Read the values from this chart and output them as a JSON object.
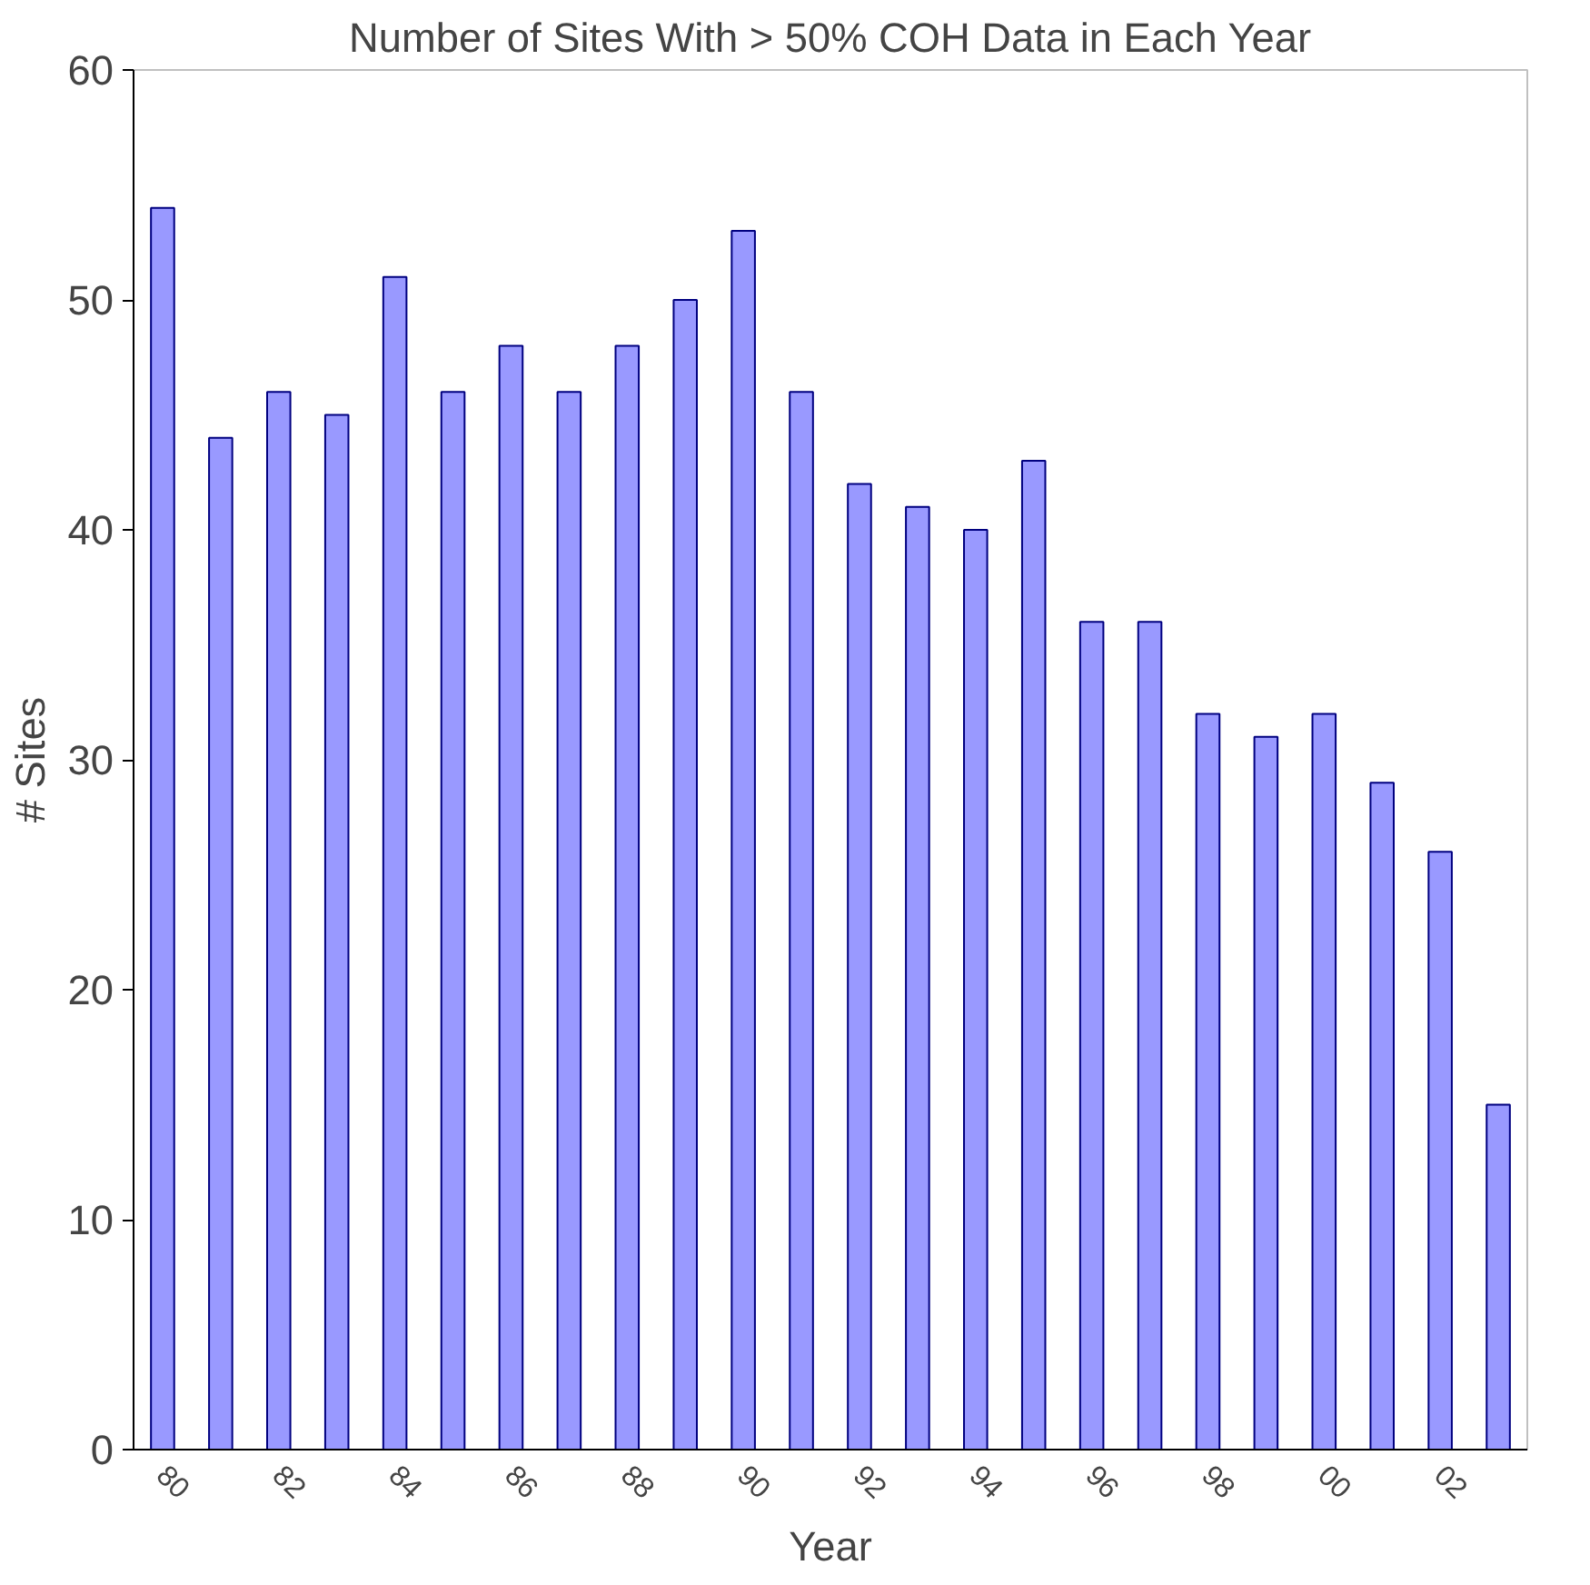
{
  "chart_data": {
    "type": "bar",
    "title": "Number of Sites With > 50% COH Data in Each Year",
    "xlabel": "Year",
    "ylabel": "# Sites",
    "categories": [
      "80",
      null,
      "82",
      null,
      "84",
      null,
      "86",
      null,
      "88",
      null,
      "90",
      null,
      "92",
      null,
      "94",
      null,
      "96",
      null,
      "98",
      null,
      "00",
      null,
      "02",
      null
    ],
    "values": [
      54,
      44,
      46,
      45,
      51,
      46,
      48,
      46,
      48,
      50,
      53,
      46,
      42,
      41,
      40,
      43,
      36,
      36,
      32,
      31,
      32,
      29,
      26,
      15
    ],
    "color": "#9999ff",
    "ylim": [
      0,
      60
    ],
    "yticks": [
      0,
      10,
      20,
      30,
      40,
      50,
      60
    ],
    "grid": false
  }
}
